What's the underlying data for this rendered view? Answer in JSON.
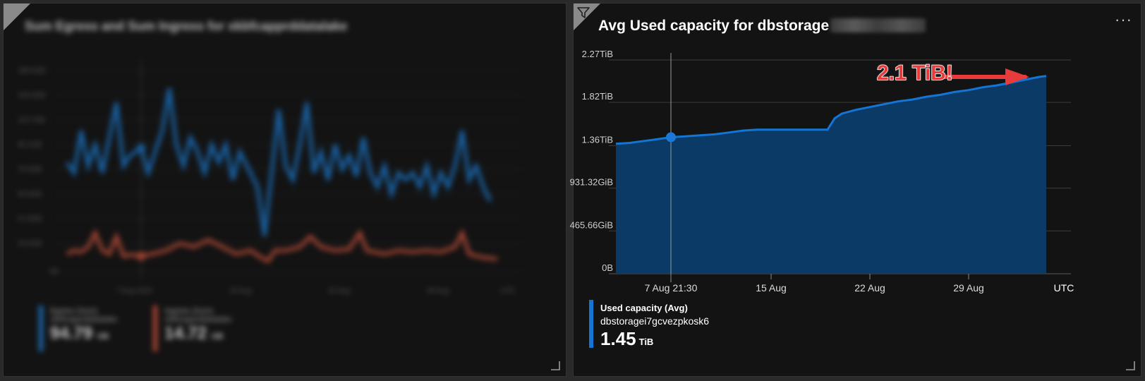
{
  "left_tile": {
    "title": "Sum Egress and Sum Ingress for xkbfcapprddatalake",
    "legend": [
      {
        "label": "Egress (Sum)",
        "resource": "xkbfcapprddatalake",
        "value": "94.79",
        "unit": "GB",
        "color": "#1f77c8"
      },
      {
        "label": "Ingress (Sum)",
        "resource": "xkbfcapprddatalake",
        "value": "14.72",
        "unit": "GB",
        "color": "#c8503a"
      }
    ]
  },
  "right_tile": {
    "title_prefix": "Avg Used capacity for dbstorage",
    "more_label": "···",
    "annotation": "2.1 TiB!",
    "legend": {
      "series_label": "Used capacity (Avg)",
      "resource": "dbstoragei7gcvezpkosk6",
      "value": "1.45",
      "unit": "TiB"
    },
    "timezone_label": "UTC"
  },
  "chart_data": {
    "type": "area",
    "title": "Avg Used capacity for dbstorage",
    "y_ticks": [
      "0B",
      "465.66GiB",
      "931.32GiB",
      "1.36TiB",
      "1.82TiB",
      "2.27TiB"
    ],
    "y_tick_values": [
      0,
      0.4547,
      0.9095,
      1.36,
      1.82,
      2.27
    ],
    "ylim": [
      0,
      2.27
    ],
    "y_unit": "TiB",
    "x_ticks": [
      "7 Aug 21:30",
      "15 Aug",
      "22 Aug",
      "29 Aug"
    ],
    "x_tick_values": [
      3.9,
      11.0,
      18.0,
      25.0
    ],
    "xlim": [
      0,
      30.5
    ],
    "grid": true,
    "cursor_x": 3.9,
    "cursor_value": 1.45,
    "series": [
      {
        "name": "Used capacity (Avg)",
        "color": "#1375d4",
        "fill": "#0b3a66",
        "x": [
          0,
          1,
          2,
          3,
          3.9,
          5,
          6,
          7,
          8,
          9,
          10,
          11,
          12,
          13,
          14,
          15,
          15.5,
          16,
          17,
          18,
          19,
          20,
          21,
          22,
          23,
          24,
          25,
          26,
          27,
          28,
          29,
          30,
          30.5
        ],
        "y": [
          1.38,
          1.39,
          1.41,
          1.43,
          1.45,
          1.46,
          1.47,
          1.48,
          1.5,
          1.52,
          1.53,
          1.53,
          1.53,
          1.53,
          1.53,
          1.53,
          1.65,
          1.7,
          1.74,
          1.77,
          1.8,
          1.83,
          1.85,
          1.88,
          1.9,
          1.93,
          1.95,
          1.98,
          2.0,
          2.03,
          2.06,
          2.09,
          2.1
        ]
      }
    ]
  }
}
